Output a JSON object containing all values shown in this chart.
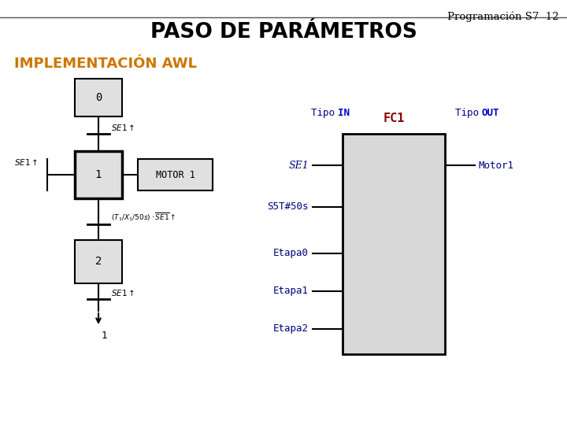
{
  "bg_color": "#ffffff",
  "title_top_right": "Programación S7  12",
  "title_main": "PASO DE PARÁMETROS",
  "subtitle": "IMPLEMENTACIÓN AWL",
  "subtitle_color": "#cc7700",
  "box_fill": "#e0e0e0",
  "box_edge": "#000000",
  "fc1_label": "FC1",
  "fc1_label_color": "#8b0000",
  "fc1_fill": "#d8d8d8",
  "tipo_normal_color": "#000080",
  "tipo_bold_color": "#0000cc",
  "input_label_color": "#000080",
  "output_label_color": "#000080"
}
